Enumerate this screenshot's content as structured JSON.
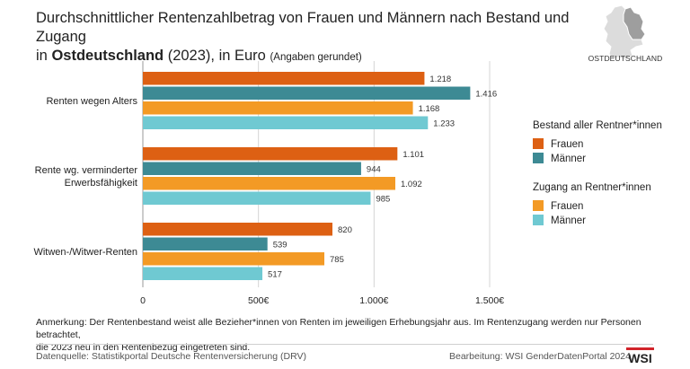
{
  "header": {
    "title_line1": "Durchschnittlicher Rentenzahlbetrag von Frauen und Männern nach Bestand und Zugang",
    "title_line2_pre": "in ",
    "title_line2_bold": "Ostdeutschland",
    "title_line2_post": " (2023), in Euro ",
    "title_line2_small": "(Angaben gerundet)"
  },
  "map": {
    "label": "OSTDEUTSCHLAND"
  },
  "legend": {
    "group1_title": "Bestand aller Rentner*innen",
    "group1_items": [
      "Frauen",
      "Männer"
    ],
    "group2_title": "Zugang an Rentner*innen",
    "group2_items": [
      "Frauen",
      "Männer"
    ]
  },
  "colors": {
    "bestand_frauen": "#dd6013",
    "bestand_maenner": "#3d8a94",
    "zugang_frauen": "#f39a25",
    "zugang_maenner": "#6fc9d2"
  },
  "chart_data": {
    "type": "bar",
    "orientation": "horizontal",
    "categories": [
      "Renten wegen Alters",
      "Rente wg. verminderter Erwerbsfähigkeit",
      "Witwen-/Witwer-Renten"
    ],
    "category_label_lines": [
      [
        "Renten wegen Alters"
      ],
      [
        "Rente wg. verminderter",
        "Erwerbsfähigkeit"
      ],
      [
        "Witwen-/Witwer-Renten"
      ]
    ],
    "series": [
      {
        "name": "Bestand aller Rentner*innen – Frauen",
        "values": [
          1218,
          1101,
          820
        ],
        "labels": [
          "1.218",
          "1.101",
          "820"
        ]
      },
      {
        "name": "Bestand aller Rentner*innen – Männer",
        "values": [
          1416,
          944,
          539
        ],
        "labels": [
          "1.416",
          "944",
          "539"
        ]
      },
      {
        "name": "Zugang an Rentner*innen – Frauen",
        "values": [
          1168,
          1092,
          785
        ],
        "labels": [
          "1.168",
          "1.092",
          "785"
        ]
      },
      {
        "name": "Zugang an Rentner*innen – Männer",
        "values": [
          1233,
          985,
          517
        ],
        "labels": [
          "1.233",
          "985",
          "517"
        ]
      }
    ],
    "xlim": [
      0,
      1500
    ],
    "ticks": [
      0,
      500,
      1000,
      1500
    ],
    "tick_labels": [
      "0",
      "500€",
      "1.000€",
      "1.500€"
    ],
    "grid": true,
    "legend_position": "right"
  },
  "footer": {
    "note_line1": "Anmerkung: Der Rentenbestand weist alle Bezieher*innen von Renten im jeweiligen Erhebungsjahr aus. Im Rentenzugang werden nur Personen betrachtet,",
    "note_line2": "die 2023 neu in den Rentenbezug eingetreten sind.",
    "source": "Datenquelle: Statistikportal Deutsche Rentenversicherung (DRV)",
    "credit": "Bearbeitung: WSI GenderDatenPortal 2024",
    "logo_text": "WSI"
  }
}
